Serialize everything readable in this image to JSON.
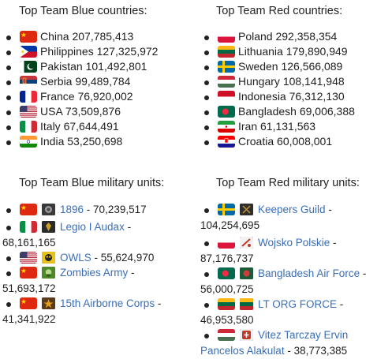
{
  "blue_countries": {
    "title": "Top Team Blue countries:",
    "items": [
      {
        "country": "China",
        "value": "207,785,413",
        "flag": "china-flag-icon"
      },
      {
        "country": "Philippines",
        "value": "127,325,972",
        "flag": "philippines-flag-icon"
      },
      {
        "country": "Pakistan",
        "value": "101,492,801",
        "flag": "pakistan-flag-icon"
      },
      {
        "country": "Serbia",
        "value": "99,489,784",
        "flag": "serbia-flag-icon"
      },
      {
        "country": "France",
        "value": "76,920,002",
        "flag": "france-flag-icon"
      },
      {
        "country": "USA",
        "value": "73,509,876",
        "flag": "usa-flag-icon"
      },
      {
        "country": "Italy",
        "value": "67,644,491",
        "flag": "italy-flag-icon"
      },
      {
        "country": "India",
        "value": "53,250,698",
        "flag": "india-flag-icon"
      }
    ]
  },
  "red_countries": {
    "title": "Top Team Red countries:",
    "items": [
      {
        "country": "Poland",
        "value": "292,358,354",
        "flag": "poland-flag-icon"
      },
      {
        "country": "Lithuania",
        "value": "179,890,949",
        "flag": "lithuania-flag-icon"
      },
      {
        "country": "Sweden",
        "value": "126,566,089",
        "flag": "sweden-flag-icon"
      },
      {
        "country": "Hungary",
        "value": "108,141,948",
        "flag": "hungary-flag-icon"
      },
      {
        "country": "Indonesia",
        "value": "76,312,130",
        "flag": "indonesia-flag-icon"
      },
      {
        "country": "Bangladesh",
        "value": "69,006,388",
        "flag": "bangladesh-flag-icon"
      },
      {
        "country": "Iran",
        "value": "61,131,563",
        "flag": "iran-flag-icon"
      },
      {
        "country": "Croatia",
        "value": "60,008,001",
        "flag": "croatia-flag-icon"
      }
    ]
  },
  "blue_units": {
    "title": "Top Team Blue military units:",
    "items": [
      {
        "name": "1896",
        "value": "70,239,517",
        "flag": "china-flag-icon",
        "icon": "unit-emblem-icon"
      },
      {
        "name": "Legio I Audax",
        "value": "68,161,165",
        "flag": "italy-flag-icon",
        "icon": "unit-emblem-icon"
      },
      {
        "name": "OWLS",
        "value": "55,624,970",
        "flag": "usa-flag-icon",
        "icon": "unit-emblem-icon"
      },
      {
        "name": "Zombies Army",
        "value": "51,693,172",
        "flag": "china-flag-icon",
        "icon": "unit-emblem-icon"
      },
      {
        "name": "15th Airborne Corps",
        "value": "41,341,922",
        "flag": "china-flag-icon",
        "icon": "unit-emblem-icon"
      }
    ]
  },
  "red_units": {
    "title": "Top Team Red military units:",
    "items": [
      {
        "name": "Keepers Guild",
        "value": "104,254,695",
        "flag": "sweden-flag-icon",
        "icon": "unit-emblem-icon"
      },
      {
        "name": "Wojsko Polskie",
        "value": "87,176,737",
        "flag": "poland-flag-icon",
        "icon": "unit-emblem-icon"
      },
      {
        "name": "Bangladesh Air Force",
        "value": "56,000,725",
        "flag": "bangladesh-flag-icon",
        "icon": "unit-emblem-icon"
      },
      {
        "name": "LT ORG FORCE",
        "value": "46,953,580",
        "flag": "lithuania-flag-icon",
        "icon": "unit-emblem-icon"
      },
      {
        "name_line1": "Vitez Tarczay Ervin",
        "name_line2": "Pancelos Alakulat",
        "value": "38,773,385",
        "flag": "hungary-flag-icon",
        "icon": "unit-emblem-icon"
      }
    ]
  },
  "colors": {
    "link": "#3a6fb8",
    "text": "#1f1f1f"
  }
}
